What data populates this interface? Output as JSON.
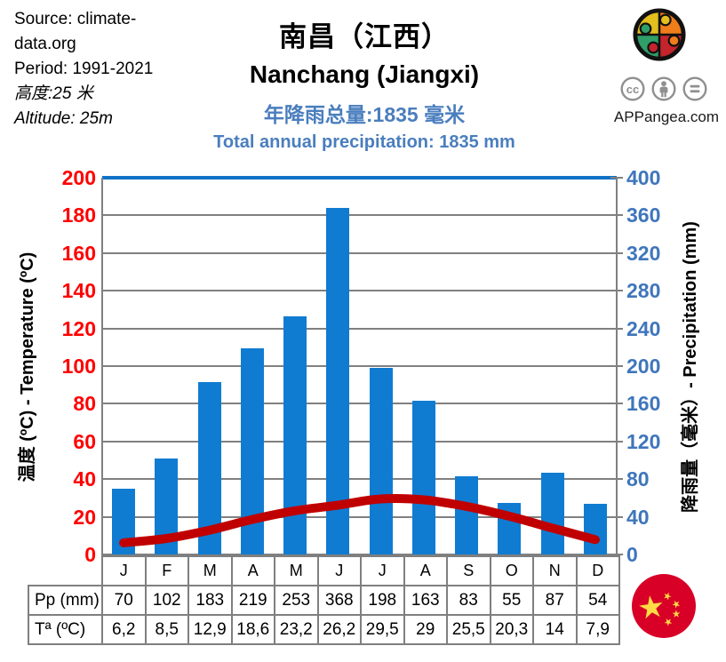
{
  "header": {
    "source": "Source: climate-data.org",
    "period": "Period: 1991-2021",
    "altitude_zh": "高度:25 米",
    "altitude_en": "Altitude: 25m"
  },
  "title": {
    "zh": "南昌（江西）",
    "en": "Nanchang (Jiangxi)",
    "precip_zh": "年降雨总量:1835 毫米",
    "precip_en": "Total annual precipitation: 1835 mm",
    "subtitle_color": "#4A7EBE"
  },
  "branding": {
    "site": "APPangea.com",
    "license_icons": [
      "cc-icon",
      "attribution-icon",
      "equal-icon"
    ],
    "logo": "puzzle-globe-logo",
    "flag": "china-flag"
  },
  "chart_data": {
    "type": "bar",
    "categories": [
      "J",
      "F",
      "M",
      "A",
      "M",
      "J",
      "J",
      "A",
      "S",
      "O",
      "N",
      "D"
    ],
    "series": [
      {
        "name": "Pp (mm)",
        "type": "bar",
        "axis": "right",
        "color": "#0F7CD2",
        "values": [
          70,
          102,
          183,
          219,
          253,
          368,
          198,
          163,
          83,
          55,
          87,
          54
        ]
      },
      {
        "name": "Tª (ºC)",
        "type": "line",
        "axis": "left",
        "color": "#C00000",
        "values": [
          6.2,
          8.5,
          12.9,
          18.6,
          23.2,
          26.2,
          29.5,
          29,
          25.5,
          20.3,
          14,
          7.9
        ]
      }
    ],
    "left_axis": {
      "title": "温度 (ºC) - Temperature (ºC)",
      "min": 0,
      "max": 200,
      "step": 20,
      "color": "#FF0000"
    },
    "right_axis": {
      "title": "降雨量（毫米）- Precipitation (mm)",
      "min": 0,
      "max": 400,
      "step": 40,
      "color": "#3F76BC"
    },
    "grid": true,
    "annual_total_mm": 1835,
    "top_border_color": "#1073C8"
  },
  "table": {
    "row_headers": [
      "Pp (mm)",
      "Tª (ºC)"
    ],
    "pp": [
      "70",
      "102",
      "183",
      "219",
      "253",
      "368",
      "198",
      "163",
      "83",
      "55",
      "87",
      "54"
    ],
    "ta": [
      "6,2",
      "8,5",
      "12,9",
      "18,6",
      "23,2",
      "26,2",
      "29,5",
      "29",
      "25,5",
      "20,3",
      "14",
      "7,9"
    ]
  }
}
